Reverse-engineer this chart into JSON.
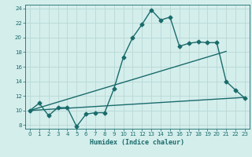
{
  "title": "",
  "xlabel": "Humidex (Indice chaleur)",
  "ylabel": "",
  "xlim": [
    -0.5,
    23.5
  ],
  "ylim": [
    7.5,
    24.5
  ],
  "yticks": [
    8,
    10,
    12,
    14,
    16,
    18,
    20,
    22,
    24
  ],
  "xticks": [
    0,
    1,
    2,
    3,
    4,
    5,
    6,
    7,
    8,
    9,
    10,
    11,
    12,
    13,
    14,
    15,
    16,
    17,
    18,
    19,
    20,
    21,
    22,
    23
  ],
  "bg_color": "#d4eeec",
  "line_color": "#1a6b6b",
  "grid_color": "#b8d8d6",
  "line1_x": [
    0,
    1,
    2,
    3,
    4,
    5,
    6,
    7,
    8,
    9,
    10,
    11,
    12,
    13,
    14,
    15,
    16,
    17,
    18,
    19,
    20,
    21,
    22,
    23
  ],
  "line1_y": [
    10.0,
    11.0,
    9.3,
    10.4,
    10.4,
    7.8,
    9.5,
    9.7,
    9.7,
    13.0,
    17.3,
    20.0,
    21.8,
    23.8,
    22.4,
    22.8,
    18.8,
    19.2,
    19.4,
    19.3,
    19.3,
    14.0,
    12.8,
    11.7
  ],
  "line2_x": [
    0,
    21
  ],
  "line2_y": [
    10.0,
    18.1
  ],
  "line3_x": [
    0,
    23
  ],
  "line3_y": [
    10.0,
    11.8
  ],
  "marker": "D",
  "markersize": 2.5,
  "linewidth": 1.0
}
